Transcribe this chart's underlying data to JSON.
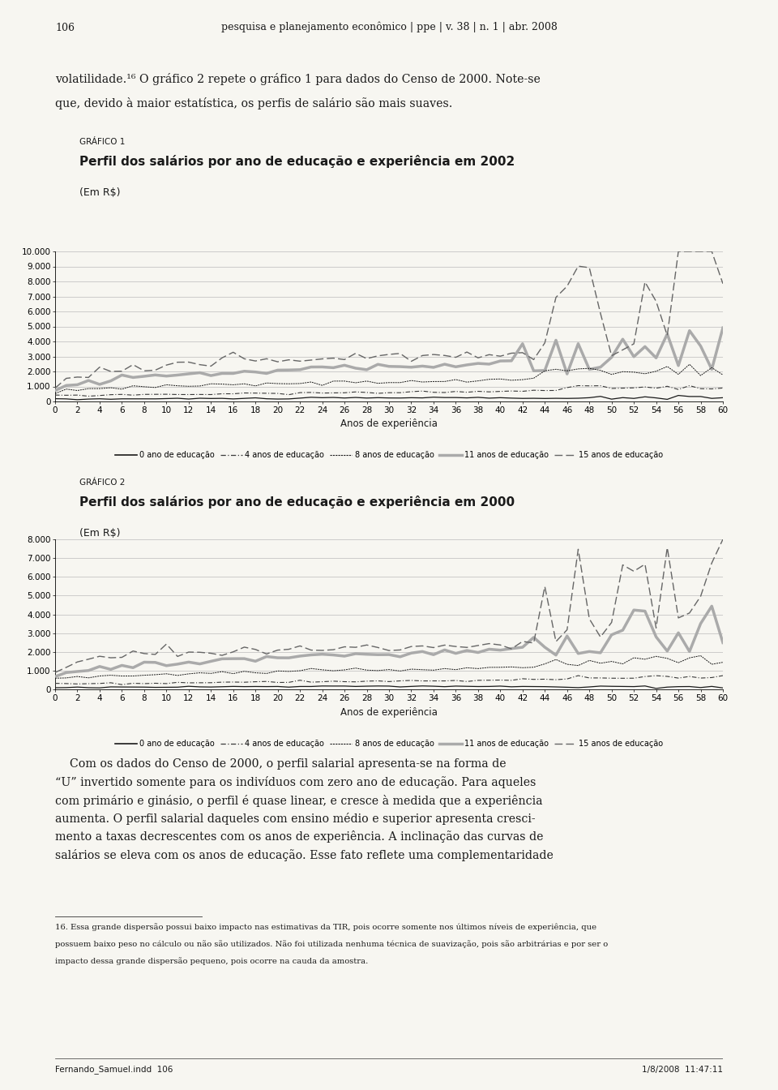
{
  "page_title": "106",
  "page_header": "pesquisa e planejamento econômico | ppe | v. 38 | n. 1 | abr. 2008",
  "intro_text_line1": "volatilidade.¹⁶ O gráfico 2 repete o gráfico 1 para dados do Censo de 2000. Note-se",
  "intro_text_line2": "que, devido à maior estatística, os perfis de salário são mais suaves.",
  "chart1": {
    "grafico_label": "GRÁFICO 1",
    "title": "Perfil dos salários por ano de educação e experiência em 2002",
    "ylabel_unit": "(Em R$)",
    "ylim": [
      0,
      10000
    ],
    "yticks": [
      0,
      1000,
      2000,
      3000,
      4000,
      5000,
      6000,
      7000,
      8000,
      9000,
      10000
    ],
    "ytick_labels": [
      "0",
      "1.000",
      "2.000",
      "3.000",
      "4.000",
      "5.000",
      "6.000",
      "7.000",
      "8.000",
      "9.000",
      "10.000"
    ],
    "xlim": [
      0,
      60
    ],
    "xticks": [
      0,
      2,
      4,
      6,
      8,
      10,
      12,
      14,
      16,
      18,
      20,
      22,
      24,
      26,
      28,
      30,
      32,
      34,
      36,
      38,
      40,
      42,
      44,
      46,
      48,
      50,
      52,
      54,
      56,
      58,
      60
    ],
    "xlabel": "Anos de experiência"
  },
  "chart2": {
    "grafico_label": "GRÁFICO 2",
    "title": "Perfil dos salários por ano de educação e experiência em 2000",
    "ylabel_unit": "(Em R$)",
    "ylim": [
      0,
      8000
    ],
    "yticks": [
      0,
      1000,
      2000,
      3000,
      4000,
      5000,
      6000,
      7000,
      8000
    ],
    "ytick_labels": [
      "0",
      "1.000",
      "2.000",
      "3.000",
      "4.000",
      "5.000",
      "6.000",
      "7.000",
      "8.000"
    ],
    "xlim": [
      0,
      60
    ],
    "xticks": [
      0,
      2,
      4,
      6,
      8,
      10,
      12,
      14,
      16,
      18,
      20,
      22,
      24,
      26,
      28,
      30,
      32,
      34,
      36,
      38,
      40,
      42,
      44,
      46,
      48,
      50,
      52,
      54,
      56,
      58,
      60
    ],
    "xlabel": "Anos de experiência"
  },
  "legend_labels": [
    "0 ano de educação",
    "4 anos de educação",
    "8 anos de educação",
    "11 anos de educação",
    "15 anos de educação"
  ],
  "body_text": [
    "    Com os dados do Censo de 2000, o perfil salarial apresenta-se na forma de",
    "“U” invertido somente para os indivíduos com zero ano de educação. Para aqueles",
    "com primário e ginásio, o perfil é quase linear, e cresce à medida que a experiência",
    "aumenta. O perfil salarial daqueles com ensino médio e superior apresenta cresci-",
    "mento a taxas decrescentes com os anos de experiência. A inclinação das curvas de",
    "salários se eleva com os anos de educação. Esse fato reflete uma complementaridade"
  ],
  "footnote_lines": [
    "16. Essa grande dispersão possui baixo impacto nas estimativas da TIR, pois ocorre somente nos últimos níveis de experiência, que",
    "possuem baixo peso no cálculo ou não são utilizados. Não foi utilizada nenhuma técnica de suavização, pois são arbitrárias e por ser o",
    "impacto dessa grande dispersão pequeno, pois ocorre na cauda da amostra."
  ],
  "footer_left": "Fernando_Samuel.indd  106",
  "footer_right": "1/8/2008  11:47:11",
  "bg_color": "#f7f6f1",
  "text_color": "#1a1a1a"
}
